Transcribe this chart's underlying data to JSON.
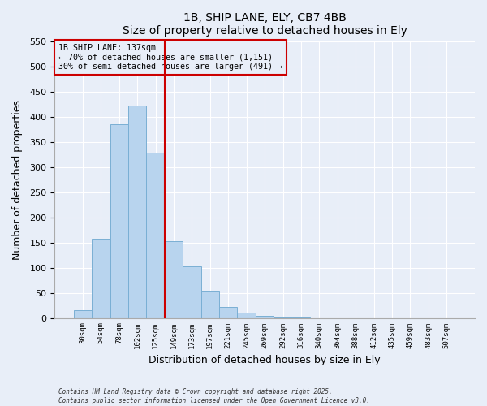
{
  "title": "1B, SHIP LANE, ELY, CB7 4BB",
  "subtitle": "Size of property relative to detached houses in Ely",
  "xlabel": "Distribution of detached houses by size in Ely",
  "ylabel": "Number of detached properties",
  "bar_labels": [
    "30sqm",
    "54sqm",
    "78sqm",
    "102sqm",
    "125sqm",
    "149sqm",
    "173sqm",
    "197sqm",
    "221sqm",
    "245sqm",
    "269sqm",
    "292sqm",
    "316sqm",
    "340sqm",
    "364sqm",
    "388sqm",
    "412sqm",
    "435sqm",
    "459sqm",
    "483sqm",
    "507sqm"
  ],
  "bar_values": [
    15,
    158,
    385,
    422,
    328,
    152,
    102,
    54,
    22,
    11,
    4,
    1,
    1,
    0,
    0,
    0,
    0,
    0,
    0,
    0,
    0
  ],
  "bar_color": "#b8d4ee",
  "bar_edge_color": "#7aafd4",
  "ylim": [
    0,
    550
  ],
  "yticks": [
    0,
    50,
    100,
    150,
    200,
    250,
    300,
    350,
    400,
    450,
    500,
    550
  ],
  "property_line_x": 4.5,
  "annotation_title": "1B SHIP LANE: 137sqm",
  "annotation_line1": "← 70% of detached houses are smaller (1,151)",
  "annotation_line2": "30% of semi-detached houses are larger (491) →",
  "annotation_box_color": "#cc0000",
  "vline_color": "#cc0000",
  "background_color": "#e8eef8",
  "grid_color": "#ffffff",
  "footer1": "Contains HM Land Registry data © Crown copyright and database right 2025.",
  "footer2": "Contains public sector information licensed under the Open Government Licence v3.0."
}
